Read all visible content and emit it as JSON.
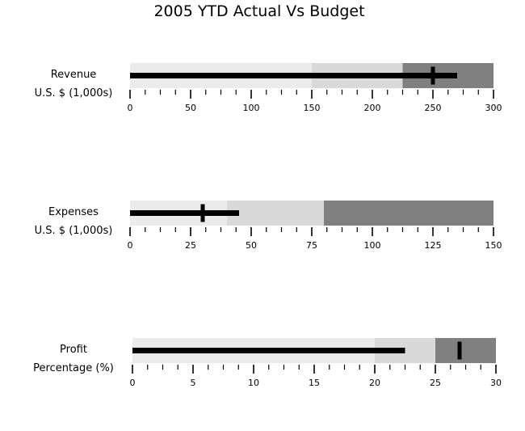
{
  "title": "2005 YTD Actual Vs Budget",
  "colors": {
    "band_light": "#ebebeb",
    "band_mid": "#d9d9d9",
    "band_dark": "#808080",
    "measure": "#000000",
    "target": "#000000"
  },
  "chart_data": [
    {
      "type": "bullet",
      "label": "Revenue",
      "sublabel": "U.S. $ (1,000s)",
      "ranges": [
        150,
        225,
        300
      ],
      "actual": 270,
      "target": 250,
      "xlim": [
        0,
        300
      ],
      "major_ticks": [
        0,
        50,
        100,
        150,
        200,
        250,
        300
      ],
      "minor_step": 12.5
    },
    {
      "type": "bullet",
      "label": "Expenses",
      "sublabel": "U.S. $ (1,000s)",
      "ranges": [
        40,
        80,
        150
      ],
      "actual": 45,
      "target": 30,
      "xlim": [
        0,
        150
      ],
      "major_ticks": [
        0,
        25,
        50,
        75,
        100,
        125,
        150
      ],
      "minor_step": 6.25
    },
    {
      "type": "bullet",
      "label": "Profit",
      "sublabel": "Percentage (%)",
      "ranges": [
        20,
        25,
        30
      ],
      "actual": 22.5,
      "target": 27,
      "xlim": [
        0,
        30
      ],
      "major_ticks": [
        0,
        5,
        10,
        15,
        20,
        25,
        30
      ],
      "minor_step": 1.25
    }
  ]
}
